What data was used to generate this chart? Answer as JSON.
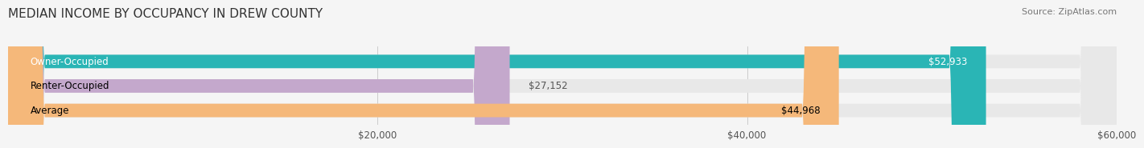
{
  "title": "MEDIAN INCOME BY OCCUPANCY IN DREW COUNTY",
  "source": "Source: ZipAtlas.com",
  "categories": [
    "Owner-Occupied",
    "Renter-Occupied",
    "Average"
  ],
  "values": [
    52933,
    27152,
    44968
  ],
  "bar_colors": [
    "#2ab5b5",
    "#c4a8cc",
    "#f5b87a"
  ],
  "bar_labels": [
    "$52,933",
    "$27,152",
    "$44,968"
  ],
  "xlim": [
    0,
    60000
  ],
  "xticks": [
    0,
    20000,
    40000,
    60000
  ],
  "xtick_labels": [
    "$20,000",
    "$40,000",
    "$60,000"
  ],
  "background_color": "#f5f5f5",
  "bar_bg_color": "#e8e8e8",
  "title_fontsize": 11,
  "source_fontsize": 8,
  "label_fontsize": 8.5,
  "tick_fontsize": 8.5
}
